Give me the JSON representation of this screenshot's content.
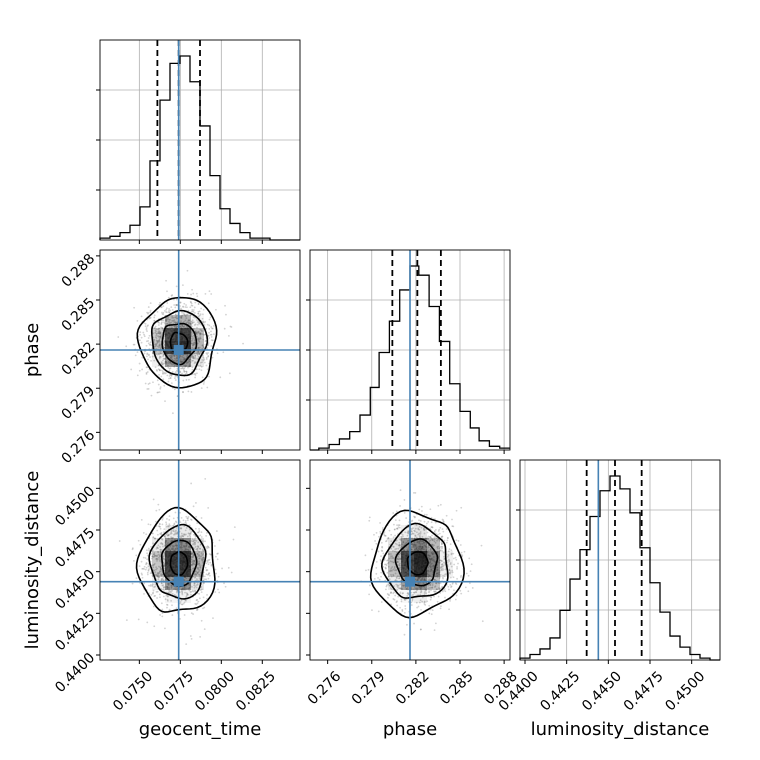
{
  "chart_data": {
    "type": "corner",
    "parameters": [
      "geocent_time",
      "phase",
      "luminosity_distance"
    ],
    "axis_labels": {
      "geocent_time": "geocent_time",
      "phase": "phase",
      "luminosity_distance": "luminosity_distance"
    },
    "ranges": {
      "geocent_time": [
        0.0726,
        0.0848
      ],
      "phase": [
        0.2748,
        0.2884
      ],
      "luminosity_distance": [
        0.4397,
        0.4517
      ]
    },
    "ticks": {
      "geocent_time": [
        {
          "v": 0.075,
          "label": "0.0750"
        },
        {
          "v": 0.0775,
          "label": "0.0775"
        },
        {
          "v": 0.08,
          "label": "0.0800"
        },
        {
          "v": 0.0825,
          "label": "0.0825"
        }
      ],
      "phase": [
        {
          "v": 0.276,
          "label": "0.276"
        },
        {
          "v": 0.279,
          "label": "0.279"
        },
        {
          "v": 0.282,
          "label": "0.282"
        },
        {
          "v": 0.285,
          "label": "0.285"
        },
        {
          "v": 0.288,
          "label": "0.288"
        }
      ],
      "luminosity_distance": [
        {
          "v": 0.44,
          "label": "0.4400"
        },
        {
          "v": 0.4425,
          "label": "0.4425"
        },
        {
          "v": 0.445,
          "label": "0.4450"
        },
        {
          "v": 0.4475,
          "label": "0.4475"
        },
        {
          "v": 0.45,
          "label": "0.4500"
        }
      ]
    },
    "truths": {
      "geocent_time": 0.0774,
      "phase": 0.2816,
      "luminosity_distance": 0.4444
    },
    "quantiles": {
      "geocent_time": [
        0.0761,
        0.0774,
        0.0787
      ],
      "phase": [
        0.2804,
        0.2821,
        0.2837
      ],
      "luminosity_distance": [
        0.4437,
        0.4454,
        0.447
      ]
    },
    "centers": {
      "geocent_time": 0.0774,
      "phase": 0.2821,
      "luminosity_distance": 0.4455
    },
    "sigmas": {
      "geocent_time": 0.00095,
      "phase": 0.00125,
      "luminosity_distance": 0.00125
    },
    "histograms": {
      "geocent_time": {
        "edges": [
          0.0726,
          0.07321,
          0.07382,
          0.07443,
          0.07504,
          0.07565,
          0.07626,
          0.07687,
          0.07748,
          0.07809,
          0.0787,
          0.07931,
          0.07992,
          0.08053,
          0.08114,
          0.08175,
          0.08236,
          0.08297,
          0.08358,
          0.08419,
          0.0848
        ],
        "counts": [
          1,
          2,
          4,
          8,
          18,
          43,
          76,
          96,
          100,
          86,
          62,
          35,
          17,
          9,
          4,
          1,
          1,
          0,
          0,
          0
        ]
      },
      "phase": {
        "edges": [
          0.2748,
          0.2754,
          0.2761,
          0.2768,
          0.2775,
          0.2782,
          0.2789,
          0.2795,
          0.2802,
          0.2809,
          0.2816,
          0.2822,
          0.2829,
          0.2836,
          0.2843,
          0.285,
          0.2857,
          0.2863,
          0.287,
          0.2877,
          0.2884
        ],
        "counts": [
          0,
          1,
          3,
          6,
          10,
          19,
          34,
          53,
          70,
          87,
          100,
          95,
          78,
          59,
          36,
          21,
          12,
          5,
          2,
          1
        ]
      },
      "luminosity_distance": {
        "edges": [
          0.4397,
          0.4403,
          0.4409,
          0.4415,
          0.4421,
          0.4427,
          0.4433,
          0.4439,
          0.4445,
          0.4451,
          0.4457,
          0.4463,
          0.4469,
          0.4475,
          0.4481,
          0.4487,
          0.4493,
          0.4499,
          0.4505,
          0.4511,
          0.4517
        ],
        "counts": [
          1,
          3,
          6,
          12,
          27,
          44,
          60,
          78,
          92,
          100,
          93,
          80,
          61,
          42,
          26,
          13,
          7,
          3,
          1,
          0
        ]
      }
    }
  }
}
